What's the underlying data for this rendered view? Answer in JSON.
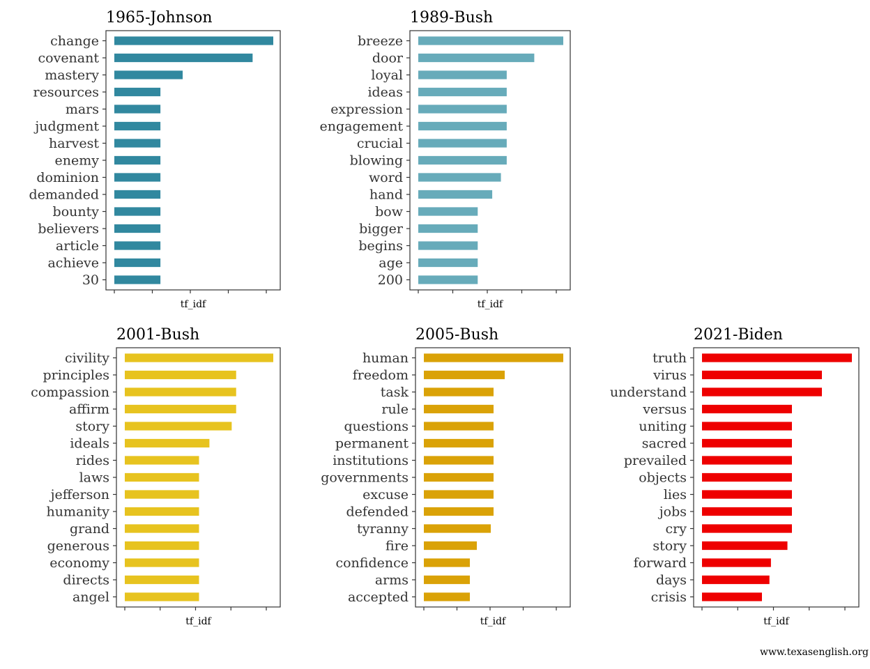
{
  "chart_data": [
    {
      "type": "bar",
      "title": "1965-Johnson",
      "xlabel": "tf_idf",
      "color": "#31889f",
      "categories": [
        "change",
        "covenant",
        "mastery",
        "resources",
        "mars",
        "judgment",
        "harvest",
        "enemy",
        "dominion",
        "demanded",
        "bounty",
        "believers",
        "article",
        "achieve",
        "30"
      ],
      "values": [
        100,
        87,
        43,
        29,
        29,
        29,
        29,
        29,
        29,
        29,
        29,
        29,
        29,
        29,
        29
      ]
    },
    {
      "type": "bar",
      "title": "1989-Bush",
      "xlabel": "tf_idf",
      "color": "#67abba",
      "categories": [
        "breeze",
        "door",
        "loyal",
        "ideas",
        "expression",
        "engagement",
        "crucial",
        "blowing",
        "word",
        "hand",
        "bow",
        "bigger",
        "begins",
        "age",
        "200"
      ],
      "values": [
        100,
        80,
        61,
        61,
        61,
        61,
        61,
        61,
        57,
        51,
        41,
        41,
        41,
        41,
        41
      ]
    },
    {
      "type": "bar",
      "title": "2001-Bush",
      "xlabel": "tf_idf",
      "color": "#e7c31f",
      "categories": [
        "civility",
        "principles",
        "compassion",
        "affirm",
        "story",
        "ideals",
        "rides",
        "laws",
        "jefferson",
        "humanity",
        "grand",
        "generous",
        "economy",
        "directs",
        "angel"
      ],
      "values": [
        100,
        75,
        75,
        75,
        72,
        57,
        50,
        50,
        50,
        50,
        50,
        50,
        50,
        50,
        50
      ]
    },
    {
      "type": "bar",
      "title": "2005-Bush",
      "xlabel": "tf_idf",
      "color": "#daa207",
      "categories": [
        "human",
        "freedom",
        "task",
        "rule",
        "questions",
        "permanent",
        "institutions",
        "governments",
        "excuse",
        "defended",
        "tyranny",
        "fire",
        "confidence",
        "arms",
        "accepted"
      ],
      "values": [
        100,
        58,
        50,
        50,
        50,
        50,
        50,
        50,
        50,
        50,
        48,
        38,
        33,
        33,
        33
      ]
    },
    {
      "type": "bar",
      "title": "2021-Biden",
      "xlabel": "tf_idf",
      "color": "#ee0000",
      "categories": [
        "truth",
        "virus",
        "understand",
        "versus",
        "uniting",
        "sacred",
        "prevailed",
        "objects",
        "lies",
        "jobs",
        "cry",
        "story",
        "forward",
        "days",
        "crisis"
      ],
      "values": [
        100,
        80,
        80,
        60,
        60,
        60,
        60,
        60,
        60,
        60,
        60,
        57,
        46,
        45,
        40
      ]
    }
  ],
  "credit": "www.texasenglish.org"
}
